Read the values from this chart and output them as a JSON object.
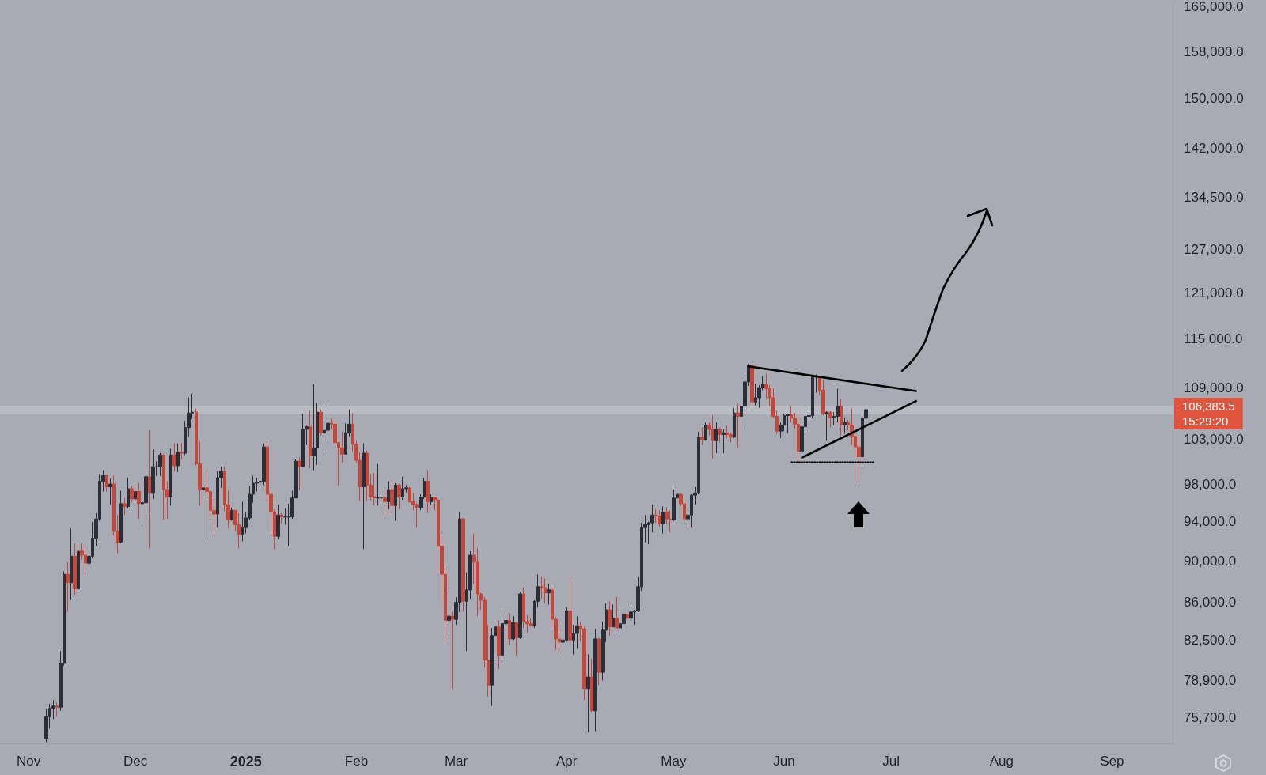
{
  "chart_data": {
    "type": "candlestick",
    "log": true,
    "xlim": [
      "2024-10-24",
      "2025-09-18"
    ],
    "xticks": [
      {
        "value": "2024-11-01",
        "label": "Nov"
      },
      {
        "value": "2024-12-01",
        "label": "Dec"
      },
      {
        "value": "2025-01-01",
        "label": "2025"
      },
      {
        "value": "2025-02-01",
        "label": "Feb"
      },
      {
        "value": "2025-03-01",
        "label": "Mar"
      },
      {
        "value": "2025-04-01",
        "label": "Apr"
      },
      {
        "value": "2025-05-01",
        "label": "May"
      },
      {
        "value": "2025-06-01",
        "label": "Jun"
      },
      {
        "value": "2025-07-01",
        "label": "Jul"
      },
      {
        "value": "2025-08-01",
        "label": "Aug"
      },
      {
        "value": "2025-09-01",
        "label": "Sep"
      }
    ],
    "ylim": [
      73600,
      166700
    ],
    "yticks": [
      {
        "value": 75700,
        "label": "75,700.0"
      },
      {
        "value": 78900,
        "label": "78,900.0"
      },
      {
        "value": 82500,
        "label": "82,500.0"
      },
      {
        "value": 86000,
        "label": "86,000.0"
      },
      {
        "value": 90000,
        "label": "90,000.0"
      },
      {
        "value": 94000,
        "label": "94,000.0"
      },
      {
        "value": 98000,
        "label": "98,000.0"
      },
      {
        "value": 103000,
        "label": "103,000.0"
      },
      {
        "value": 109000,
        "label": "109,000.0"
      },
      {
        "value": 115000,
        "label": "115,000.0"
      },
      {
        "value": 121000,
        "label": "121,000.0"
      },
      {
        "value": 127000,
        "label": "127,000.0"
      },
      {
        "value": 134500,
        "label": "134,500.0"
      },
      {
        "value": 142000,
        "label": "142,000.0"
      },
      {
        "value": 150000,
        "label": "150,000.0"
      },
      {
        "value": 158000,
        "label": "158,000.0"
      },
      {
        "value": 166000,
        "label": "166,000.0"
      }
    ],
    "ref_lines": [
      {
        "axis": "y",
        "value": 106383.5,
        "label": "106,383.5",
        "color": "#b9bbc3"
      }
    ],
    "annotations": [
      "15:29:20"
    ],
    "x": [
      "2024-11-06",
      "2024-11-07",
      "2024-11-08",
      "2024-11-09",
      "2024-11-10",
      "2024-11-11",
      "2024-11-12",
      "2024-11-13",
      "2024-11-14",
      "2024-11-15",
      "2024-11-16",
      "2024-11-17",
      "2024-11-18",
      "2024-11-19",
      "2024-11-20",
      "2024-11-21",
      "2024-11-22",
      "2024-11-23",
      "2024-11-24",
      "2024-11-25",
      "2024-11-26",
      "2024-11-27",
      "2024-11-28",
      "2024-11-29",
      "2024-11-30",
      "2024-12-01",
      "2024-12-02",
      "2024-12-03",
      "2024-12-04",
      "2024-12-05",
      "2024-12-06",
      "2024-12-07",
      "2024-12-08",
      "2024-12-09",
      "2024-12-10",
      "2024-12-11",
      "2024-12-12",
      "2024-12-13",
      "2024-12-14",
      "2024-12-15",
      "2024-12-16",
      "2024-12-17",
      "2024-12-18",
      "2024-12-19",
      "2024-12-20",
      "2024-12-21",
      "2024-12-22",
      "2024-12-23",
      "2024-12-24",
      "2024-12-25",
      "2024-12-26",
      "2024-12-27",
      "2024-12-28",
      "2024-12-29",
      "2024-12-30",
      "2024-12-31",
      "2025-01-01",
      "2025-01-02",
      "2025-01-03",
      "2025-01-04",
      "2025-01-05",
      "2025-01-06",
      "2025-01-07",
      "2025-01-08",
      "2025-01-09",
      "2025-01-10",
      "2025-01-11",
      "2025-01-12",
      "2025-01-13",
      "2025-01-14",
      "2025-01-15",
      "2025-01-16",
      "2025-01-17",
      "2025-01-18",
      "2025-01-19",
      "2025-01-20",
      "2025-01-21",
      "2025-01-22",
      "2025-01-23",
      "2025-01-24",
      "2025-01-25",
      "2025-01-26",
      "2025-01-27",
      "2025-01-28",
      "2025-01-29",
      "2025-01-30",
      "2025-01-31",
      "2025-02-01",
      "2025-02-02",
      "2025-02-03",
      "2025-02-04",
      "2025-02-05",
      "2025-02-06",
      "2025-02-07",
      "2025-02-08",
      "2025-02-09",
      "2025-02-10",
      "2025-02-11",
      "2025-02-12",
      "2025-02-13",
      "2025-02-14",
      "2025-02-15",
      "2025-02-16",
      "2025-02-17",
      "2025-02-18",
      "2025-02-19",
      "2025-02-20",
      "2025-02-21",
      "2025-02-22",
      "2025-02-23",
      "2025-02-24",
      "2025-02-25",
      "2025-02-26",
      "2025-02-27",
      "2025-02-28",
      "2025-03-01",
      "2025-03-02",
      "2025-03-03",
      "2025-03-04",
      "2025-03-05",
      "2025-03-06",
      "2025-03-07",
      "2025-03-08",
      "2025-03-09",
      "2025-03-10",
      "2025-03-11",
      "2025-03-12",
      "2025-03-13",
      "2025-03-14",
      "2025-03-15",
      "2025-03-16",
      "2025-03-17",
      "2025-03-18",
      "2025-03-19",
      "2025-03-20",
      "2025-03-21",
      "2025-03-22",
      "2025-03-23",
      "2025-03-24",
      "2025-03-25",
      "2025-03-26",
      "2025-03-27",
      "2025-03-28",
      "2025-03-29",
      "2025-03-30",
      "2025-03-31",
      "2025-04-01",
      "2025-04-02",
      "2025-04-03",
      "2025-04-04",
      "2025-04-05",
      "2025-04-06",
      "2025-04-07",
      "2025-04-08",
      "2025-04-09",
      "2025-04-10",
      "2025-04-11",
      "2025-04-12",
      "2025-04-13",
      "2025-04-14",
      "2025-04-15",
      "2025-04-16",
      "2025-04-17",
      "2025-04-18",
      "2025-04-19",
      "2025-04-20",
      "2025-04-21",
      "2025-04-22",
      "2025-04-23",
      "2025-04-24",
      "2025-04-25",
      "2025-04-26",
      "2025-04-27",
      "2025-04-28",
      "2025-04-29",
      "2025-04-30",
      "2025-05-01",
      "2025-05-02",
      "2025-05-03",
      "2025-05-04",
      "2025-05-05",
      "2025-05-06",
      "2025-05-07",
      "2025-05-08",
      "2025-05-09",
      "2025-05-10",
      "2025-05-11",
      "2025-05-12",
      "2025-05-13",
      "2025-05-14",
      "2025-05-15",
      "2025-05-16",
      "2025-05-17",
      "2025-05-18",
      "2025-05-19",
      "2025-05-20",
      "2025-05-21",
      "2025-05-22",
      "2025-05-23",
      "2025-05-24",
      "2025-05-25",
      "2025-05-26",
      "2025-05-27",
      "2025-05-28",
      "2025-05-29",
      "2025-05-30",
      "2025-05-31",
      "2025-06-01",
      "2025-06-02",
      "2025-06-03",
      "2025-06-04",
      "2025-06-05",
      "2025-06-06",
      "2025-06-07",
      "2025-06-08",
      "2025-06-09",
      "2025-06-10",
      "2025-06-11",
      "2025-06-12",
      "2025-06-13",
      "2025-06-14",
      "2025-06-15",
      "2025-06-16",
      "2025-06-17",
      "2025-06-18",
      "2025-06-19",
      "2025-06-20",
      "2025-06-21",
      "2025-06-22",
      "2025-06-23",
      "2025-06-24"
    ],
    "ohlc": [
      [
        74000,
        76500,
        73700,
        75800
      ],
      [
        75800,
        76900,
        74800,
        76500
      ],
      [
        76500,
        77200,
        75600,
        76700
      ],
      [
        76700,
        77000,
        75800,
        76600
      ],
      [
        76600,
        81500,
        76300,
        80400
      ],
      [
        80400,
        89000,
        80200,
        88700
      ],
      [
        88700,
        89900,
        85100,
        87900
      ],
      [
        87900,
        93300,
        86200,
        90500
      ],
      [
        90500,
        91800,
        86700,
        87300
      ],
      [
        87300,
        91900,
        86700,
        91000
      ],
      [
        91000,
        91800,
        90100,
        90600
      ],
      [
        90600,
        91500,
        88700,
        89800
      ],
      [
        89800,
        92600,
        89400,
        90500
      ],
      [
        90500,
        94000,
        90300,
        92300
      ],
      [
        92300,
        94900,
        91500,
        94300
      ],
      [
        94300,
        99000,
        94100,
        98300
      ],
      [
        98300,
        99500,
        97200,
        98900
      ],
      [
        98900,
        99000,
        97200,
        97700
      ],
      [
        97700,
        98600,
        95800,
        98000
      ],
      [
        98000,
        98900,
        92600,
        93000
      ],
      [
        93000,
        94700,
        90800,
        91900
      ],
      [
        91900,
        97300,
        91800,
        95900
      ],
      [
        95900,
        96500,
        94700,
        95600
      ],
      [
        95600,
        98700,
        95400,
        97500
      ],
      [
        97500,
        97800,
        96100,
        96400
      ],
      [
        96400,
        98000,
        95800,
        97200
      ],
      [
        97200,
        98100,
        94300,
        95900
      ],
      [
        95900,
        96300,
        93600,
        96000
      ],
      [
        96000,
        99100,
        94600,
        98800
      ],
      [
        98800,
        104000,
        91300,
        97000
      ],
      [
        97000,
        101800,
        96400,
        99900
      ],
      [
        99900,
        100500,
        98900,
        99900
      ],
      [
        99900,
        101400,
        98900,
        101200
      ],
      [
        101200,
        101300,
        94200,
        97400
      ],
      [
        97400,
        98300,
        94300,
        96600
      ],
      [
        96600,
        101900,
        95700,
        101200
      ],
      [
        101200,
        102500,
        99400,
        100000
      ],
      [
        100000,
        102500,
        99300,
        101500
      ],
      [
        101500,
        102600,
        100700,
        101400
      ],
      [
        101400,
        105100,
        101200,
        104300
      ],
      [
        104300,
        107800,
        103300,
        106000
      ],
      [
        106000,
        108300,
        105300,
        106100
      ],
      [
        106100,
        106500,
        100000,
        100200
      ],
      [
        100200,
        102700,
        95700,
        97400
      ],
      [
        97400,
        98100,
        92200,
        97600
      ],
      [
        97600,
        99500,
        96400,
        97200
      ],
      [
        97200,
        97400,
        94200,
        95200
      ],
      [
        95200,
        96400,
        92500,
        94800
      ],
      [
        94800,
        99400,
        93400,
        98700
      ],
      [
        98700,
        99900,
        97600,
        99400
      ],
      [
        99400,
        99900,
        95100,
        95800
      ],
      [
        95800,
        97300,
        93300,
        94200
      ],
      [
        94200,
        95500,
        94100,
        95200
      ],
      [
        95200,
        95200,
        93000,
        93700
      ],
      [
        93700,
        94900,
        91300,
        92700
      ],
      [
        92700,
        96100,
        92000,
        93400
      ],
      [
        93400,
        95000,
        92800,
        94400
      ],
      [
        94400,
        97800,
        94200,
        96900
      ],
      [
        96900,
        98900,
        96000,
        98100
      ],
      [
        98100,
        98700,
        97200,
        98200
      ],
      [
        98200,
        98800,
        97300,
        98300
      ],
      [
        98300,
        102500,
        97900,
        102100
      ],
      [
        102100,
        102700,
        96200,
        96900
      ],
      [
        96900,
        97300,
        92500,
        95000
      ],
      [
        95000,
        95300,
        91200,
        92500
      ],
      [
        92500,
        95800,
        92200,
        94700
      ],
      [
        94700,
        94900,
        93800,
        94500
      ],
      [
        94500,
        95400,
        93700,
        94500
      ],
      [
        94500,
        95900,
        91500,
        94500
      ],
      [
        94500,
        97300,
        94300,
        96500
      ],
      [
        96500,
        100700,
        96500,
        100500
      ],
      [
        100500,
        100900,
        97300,
        99900
      ],
      [
        99900,
        105900,
        99900,
        104100
      ],
      [
        104100,
        104500,
        102300,
        104400
      ],
      [
        104400,
        106300,
        99700,
        101100
      ],
      [
        101100,
        109400,
        99500,
        102000
      ],
      [
        102000,
        107200,
        100100,
        106100
      ],
      [
        106100,
        106400,
        103400,
        103700
      ],
      [
        103700,
        106900,
        101300,
        104000
      ],
      [
        104000,
        107100,
        102800,
        104800
      ],
      [
        104800,
        105300,
        104100,
        104700
      ],
      [
        104700,
        105500,
        102500,
        102600
      ],
      [
        102600,
        102600,
        97800,
        102000
      ],
      [
        102000,
        103800,
        100300,
        101300
      ],
      [
        101300,
        104800,
        101300,
        103700
      ],
      [
        103700,
        106400,
        103300,
        104700
      ],
      [
        104700,
        106000,
        101600,
        102400
      ],
      [
        102400,
        102800,
        100300,
        100600
      ],
      [
        100600,
        101500,
        96200,
        97700
      ],
      [
        97700,
        102500,
        91200,
        101400
      ],
      [
        101400,
        101700,
        96200,
        97900
      ],
      [
        97900,
        99000,
        96200,
        96600
      ],
      [
        96600,
        99200,
        95700,
        96500
      ],
      [
        96500,
        100200,
        95700,
        96500
      ],
      [
        96500,
        96900,
        95700,
        96500
      ],
      [
        96500,
        97300,
        94700,
        96100
      ],
      [
        96100,
        98300,
        95300,
        97400
      ],
      [
        97400,
        98500,
        94900,
        95700
      ],
      [
        95700,
        98100,
        94100,
        97900
      ],
      [
        97900,
        98000,
        95300,
        96600
      ],
      [
        96600,
        98800,
        96300,
        97500
      ],
      [
        97500,
        97900,
        97100,
        97600
      ],
      [
        97600,
        97700,
        96000,
        96100
      ],
      [
        96100,
        97000,
        95200,
        95800
      ],
      [
        95800,
        96000,
        93400,
        95500
      ],
      [
        95500,
        96900,
        95200,
        96600
      ],
      [
        96600,
        98700,
        96400,
        98300
      ],
      [
        98300,
        99500,
        94900,
        96100
      ],
      [
        96100,
        96900,
        95800,
        96600
      ],
      [
        96600,
        96600,
        95200,
        96300
      ],
      [
        96300,
        96500,
        91300,
        91500
      ],
      [
        91500,
        92500,
        86100,
        88700
      ],
      [
        88700,
        89300,
        82300,
        84300
      ],
      [
        84300,
        87100,
        82800,
        84700
      ],
      [
        84700,
        85100,
        78200,
        84400
      ],
      [
        84400,
        86500,
        83900,
        86000
      ],
      [
        86000,
        95000,
        85100,
        94300
      ],
      [
        94300,
        94400,
        85100,
        86100
      ],
      [
        86100,
        88900,
        81500,
        87200
      ],
      [
        87200,
        91000,
        86300,
        90600
      ],
      [
        90600,
        92800,
        87800,
        89900
      ],
      [
        89900,
        91300,
        84700,
        86800
      ],
      [
        86800,
        86900,
        85300,
        86200
      ],
      [
        86200,
        86500,
        80000,
        80700
      ],
      [
        80700,
        83900,
        77500,
        78500
      ],
      [
        78500,
        83600,
        76700,
        82900
      ],
      [
        82900,
        84300,
        80600,
        83700
      ],
      [
        83700,
        84300,
        79900,
        81100
      ],
      [
        81100,
        85300,
        80800,
        84000
      ],
      [
        84000,
        84700,
        83600,
        84300
      ],
      [
        84300,
        85000,
        82000,
        82600
      ],
      [
        82600,
        84700,
        82500,
        84100
      ],
      [
        84100,
        84100,
        81100,
        82700
      ],
      [
        82700,
        87000,
        82600,
        86800
      ],
      [
        86800,
        87400,
        83600,
        84200
      ],
      [
        84200,
        84800,
        83200,
        84000
      ],
      [
        84000,
        84500,
        83700,
        83800
      ],
      [
        83800,
        86200,
        83600,
        86100
      ],
      [
        86100,
        88700,
        85500,
        87500
      ],
      [
        87500,
        88500,
        86300,
        87400
      ],
      [
        87400,
        88300,
        85900,
        86900
      ],
      [
        86900,
        87800,
        85800,
        87200
      ],
      [
        87200,
        87500,
        83600,
        84400
      ],
      [
        84400,
        84600,
        81600,
        82600
      ],
      [
        82600,
        83500,
        81600,
        82300
      ],
      [
        82300,
        83900,
        81300,
        82500
      ],
      [
        82500,
        85500,
        82400,
        85200
      ],
      [
        85200,
        88500,
        82300,
        82500
      ],
      [
        82500,
        83900,
        81200,
        83100
      ],
      [
        83100,
        84700,
        81700,
        83800
      ],
      [
        83800,
        84200,
        82400,
        83500
      ],
      [
        83500,
        83700,
        77200,
        78200
      ],
      [
        78200,
        81200,
        74500,
        79200
      ],
      [
        79200,
        80800,
        76200,
        76300
      ],
      [
        76300,
        83500,
        74600,
        82600
      ],
      [
        82600,
        82700,
        78500,
        79600
      ],
      [
        79600,
        84200,
        78900,
        83400
      ],
      [
        83400,
        85900,
        82300,
        85300
      ],
      [
        85300,
        86100,
        82900,
        83700
      ],
      [
        83700,
        85800,
        83700,
        84500
      ],
      [
        84500,
        86500,
        83600,
        83600
      ],
      [
        83600,
        85500,
        83100,
        84000
      ],
      [
        84000,
        85500,
        83900,
        84900
      ],
      [
        84900,
        85100,
        84300,
        84500
      ],
      [
        84500,
        85600,
        84300,
        85100
      ],
      [
        85100,
        85300,
        83900,
        85200
      ],
      [
        85200,
        88500,
        85100,
        87500
      ],
      [
        87500,
        93900,
        87100,
        93400
      ],
      [
        93400,
        94700,
        91900,
        93700
      ],
      [
        93700,
        94000,
        91700,
        93900
      ],
      [
        93900,
        95800,
        92900,
        94700
      ],
      [
        94700,
        95300,
        93900,
        94600
      ],
      [
        94600,
        95200,
        93500,
        93800
      ],
      [
        93800,
        95600,
        92800,
        95000
      ],
      [
        95000,
        95500,
        93700,
        94300
      ],
      [
        94300,
        95200,
        92900,
        94200
      ],
      [
        94200,
        97400,
        94100,
        96500
      ],
      [
        96500,
        97900,
        96300,
        96900
      ],
      [
        96900,
        96900,
        95700,
        95900
      ],
      [
        95900,
        96300,
        94100,
        94300
      ],
      [
        94300,
        95200,
        93500,
        94700
      ],
      [
        94700,
        96900,
        93400,
        96800
      ],
      [
        96800,
        97700,
        95800,
        97000
      ],
      [
        97000,
        103800,
        96900,
        103200
      ],
      [
        103200,
        104300,
        102300,
        102900
      ],
      [
        102900,
        104900,
        102800,
        104600
      ],
      [
        104600,
        104900,
        103400,
        104100
      ],
      [
        104100,
        105700,
        100800,
        102800
      ],
      [
        102800,
        104900,
        101400,
        104100
      ],
      [
        104100,
        104300,
        102600,
        103500
      ],
      [
        103500,
        104100,
        101400,
        103700
      ],
      [
        103700,
        104500,
        103100,
        103500
      ],
      [
        103500,
        103700,
        102600,
        103200
      ],
      [
        103200,
        106600,
        103100,
        106000
      ],
      [
        106000,
        107100,
        102000,
        105600
      ],
      [
        105600,
        107300,
        104200,
        106800
      ],
      [
        106800,
        110700,
        106100,
        109700
      ],
      [
        109700,
        111900,
        109200,
        111700
      ],
      [
        111700,
        111800,
        106800,
        107300
      ],
      [
        107300,
        109500,
        106900,
        107800
      ],
      [
        107800,
        109300,
        106600,
        109000
      ],
      [
        109000,
        110400,
        108700,
        109400
      ],
      [
        109400,
        110700,
        107600,
        108900
      ],
      [
        108900,
        109300,
        106800,
        107800
      ],
      [
        107800,
        108900,
        105400,
        105600
      ],
      [
        105600,
        106300,
        103600,
        103900
      ],
      [
        103900,
        104900,
        103100,
        104600
      ],
      [
        104600,
        105900,
        103900,
        105700
      ],
      [
        105700,
        105900,
        103700,
        105800
      ],
      [
        105800,
        106800,
        104900,
        105400
      ],
      [
        105400,
        106000,
        104200,
        104700
      ],
      [
        104700,
        105900,
        100400,
        101600
      ],
      [
        101600,
        105000,
        101100,
        104400
      ],
      [
        104400,
        105900,
        103900,
        105600
      ],
      [
        105600,
        106500,
        104900,
        105700
      ],
      [
        105700,
        110400,
        105400,
        110300
      ],
      [
        110300,
        110600,
        108400,
        110300
      ],
      [
        110300,
        110400,
        108100,
        108700
      ],
      [
        108700,
        110000,
        105700,
        105900
      ],
      [
        105900,
        106200,
        102800,
        106100
      ],
      [
        106100,
        106200,
        104300,
        105500
      ],
      [
        105500,
        106100,
        104600,
        105600
      ],
      [
        105600,
        108900,
        104900,
        106800
      ],
      [
        106800,
        107700,
        103400,
        104600
      ],
      [
        104600,
        105500,
        103600,
        104900
      ],
      [
        104900,
        105200,
        104000,
        104600
      ],
      [
        104600,
        106500,
        102300,
        103300
      ],
      [
        103300,
        104000,
        101000,
        102100
      ],
      [
        102100,
        103300,
        98200,
        101000
      ],
      [
        101000,
        106000,
        99700,
        105400
      ],
      [
        105400,
        106800,
        104600,
        106400
      ]
    ],
    "series": [
      {
        "type": "line",
        "color": "#000000",
        "line_style": "solid",
        "x": [
          "2025-05-22",
          "2025-07-08"
        ],
        "values": [
          111600,
          108600
        ]
      },
      {
        "type": "line",
        "color": "#000000",
        "line_style": "solid",
        "x": [
          "2025-06-06",
          "2025-07-08"
        ],
        "values": [
          100900,
          107400
        ]
      },
      {
        "type": "line",
        "color": "#000000",
        "line_style": "dotted",
        "x": [
          "2025-06-03",
          "2025-06-26"
        ],
        "values": [
          100400,
          100400
        ]
      }
    ]
  }
}
